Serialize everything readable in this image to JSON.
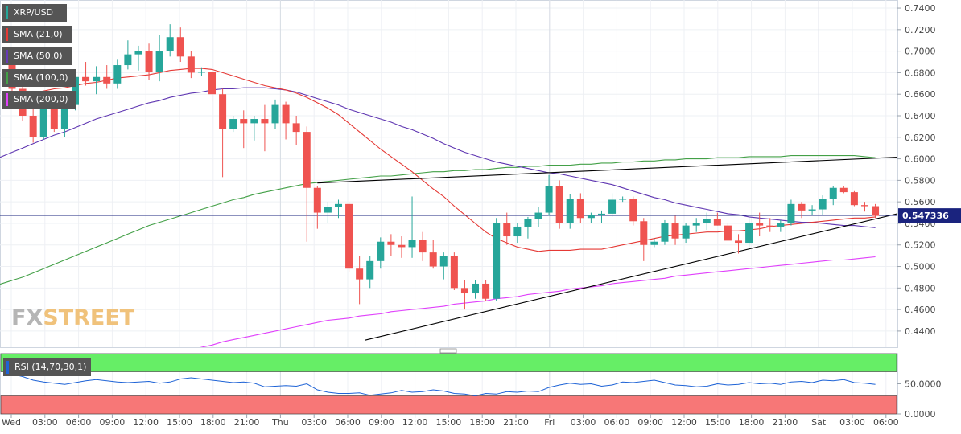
{
  "legend": [
    {
      "label": "XRP/USD",
      "color": "#26a69a"
    },
    {
      "label": "SMA (21,0)",
      "color": "#e53935"
    },
    {
      "label": "SMA (50,0)",
      "color": "#673ab7"
    },
    {
      "label": "SMA (100,0)",
      "color": "#43a047"
    },
    {
      "label": "SMA (200,0)",
      "color": "#e040fb"
    }
  ],
  "watermark": {
    "part1": "FX",
    "part2": "STREET"
  },
  "price_axis": {
    "ticks": [
      "0.7400",
      "0.7200",
      "0.7000",
      "0.6800",
      "0.6600",
      "0.6400",
      "0.6200",
      "0.6000",
      "0.5800",
      "0.5600",
      "0.5400",
      "0.5200",
      "0.5000",
      "0.4800",
      "0.4600",
      "0.4400"
    ],
    "current_price_label": "0.547336"
  },
  "rsi": {
    "label": "RSI (14,70,30,1)",
    "ticks": [
      "50.0000",
      "0.0000"
    ]
  },
  "time_axis": {
    "labels": [
      "Wed",
      "03:00",
      "06:00",
      "09:00",
      "12:00",
      "15:00",
      "18:00",
      "21:00",
      "Thu",
      "03:00",
      "06:00",
      "09:00",
      "12:00",
      "15:00",
      "18:00",
      "21:00",
      "Fri",
      "03:00",
      "06:00",
      "09:00",
      "12:00",
      "15:00",
      "18:00",
      "21:00",
      "Sat",
      "03:00",
      "06:00"
    ]
  },
  "colors": {
    "bull": "#26a69a",
    "bear": "#ef5350",
    "sma21": "#e53935",
    "sma50": "#5e35b1",
    "sma100": "#43a047",
    "sma200": "#e040fb",
    "trend": "#000000",
    "price_line": "#1a237e",
    "rsi_line": "#1e63d6",
    "rsi_overbought": "#66ee66",
    "rsi_oversold": "#f77777"
  },
  "chart_data": {
    "type": "candlestick",
    "pair": "XRP/USD",
    "timeframe_hours": 1,
    "ylim": [
      0.425,
      0.7475
    ],
    "current_price": 0.547336,
    "candles": [
      [
        0.69,
        0.7,
        0.663,
        0.665
      ],
      [
        0.665,
        0.68,
        0.635,
        0.64
      ],
      [
        0.64,
        0.65,
        0.615,
        0.62
      ],
      [
        0.62,
        0.66,
        0.618,
        0.655
      ],
      [
        0.655,
        0.663,
        0.625,
        0.628
      ],
      [
        0.628,
        0.66,
        0.62,
        0.65
      ],
      [
        0.65,
        0.682,
        0.645,
        0.676
      ],
      [
        0.676,
        0.69,
        0.668,
        0.672
      ],
      [
        0.672,
        0.686,
        0.66,
        0.676
      ],
      [
        0.676,
        0.687,
        0.665,
        0.67
      ],
      [
        0.67,
        0.692,
        0.665,
        0.687
      ],
      [
        0.687,
        0.71,
        0.683,
        0.697
      ],
      [
        0.697,
        0.705,
        0.682,
        0.7
      ],
      [
        0.7,
        0.707,
        0.673,
        0.681
      ],
      [
        0.681,
        0.715,
        0.672,
        0.7
      ],
      [
        0.7,
        0.725,
        0.695,
        0.713
      ],
      [
        0.713,
        0.722,
        0.69,
        0.695
      ],
      [
        0.695,
        0.7,
        0.675,
        0.68
      ],
      [
        0.68,
        0.685,
        0.677,
        0.681
      ],
      [
        0.681,
        0.681,
        0.653,
        0.66
      ],
      [
        0.66,
        0.665,
        0.583,
        0.628
      ],
      [
        0.628,
        0.64,
        0.625,
        0.637
      ],
      [
        0.637,
        0.645,
        0.61,
        0.633
      ],
      [
        0.633,
        0.64,
        0.617,
        0.637
      ],
      [
        0.637,
        0.65,
        0.607,
        0.633
      ],
      [
        0.633,
        0.655,
        0.628,
        0.65
      ],
      [
        0.65,
        0.653,
        0.618,
        0.633
      ],
      [
        0.633,
        0.64,
        0.613,
        0.625
      ],
      [
        0.625,
        0.63,
        0.523,
        0.573
      ],
      [
        0.573,
        0.575,
        0.535,
        0.55
      ],
      [
        0.55,
        0.56,
        0.54,
        0.555
      ],
      [
        0.555,
        0.562,
        0.545,
        0.558
      ],
      [
        0.558,
        0.56,
        0.495,
        0.498
      ],
      [
        0.498,
        0.51,
        0.465,
        0.488
      ],
      [
        0.488,
        0.51,
        0.48,
        0.505
      ],
      [
        0.505,
        0.527,
        0.498,
        0.523
      ],
      [
        0.523,
        0.53,
        0.51,
        0.52
      ],
      [
        0.52,
        0.528,
        0.508,
        0.518
      ],
      [
        0.518,
        0.565,
        0.508,
        0.525
      ],
      [
        0.525,
        0.532,
        0.505,
        0.513
      ],
      [
        0.513,
        0.525,
        0.498,
        0.5
      ],
      [
        0.5,
        0.513,
        0.488,
        0.51
      ],
      [
        0.51,
        0.513,
        0.478,
        0.48
      ],
      [
        0.48,
        0.487,
        0.46,
        0.475
      ],
      [
        0.475,
        0.487,
        0.47,
        0.484
      ],
      [
        0.484,
        0.487,
        0.468,
        0.47
      ],
      [
        0.47,
        0.545,
        0.468,
        0.54
      ],
      [
        0.54,
        0.55,
        0.52,
        0.528
      ],
      [
        0.528,
        0.54,
        0.522,
        0.537
      ],
      [
        0.537,
        0.546,
        0.526,
        0.544
      ],
      [
        0.544,
        0.555,
        0.537,
        0.55
      ],
      [
        0.55,
        0.585,
        0.547,
        0.575
      ],
      [
        0.575,
        0.58,
        0.535,
        0.54
      ],
      [
        0.54,
        0.567,
        0.535,
        0.563
      ],
      [
        0.563,
        0.568,
        0.54,
        0.545
      ],
      [
        0.545,
        0.55,
        0.54,
        0.548
      ],
      [
        0.548,
        0.552,
        0.54,
        0.549
      ],
      [
        0.549,
        0.568,
        0.546,
        0.562
      ],
      [
        0.562,
        0.565,
        0.56,
        0.563
      ],
      [
        0.563,
        0.565,
        0.538,
        0.542
      ],
      [
        0.542,
        0.545,
        0.505,
        0.52
      ],
      [
        0.52,
        0.526,
        0.518,
        0.523
      ],
      [
        0.523,
        0.543,
        0.52,
        0.54
      ],
      [
        0.54,
        0.547,
        0.52,
        0.526
      ],
      [
        0.526,
        0.54,
        0.522,
        0.538
      ],
      [
        0.538,
        0.545,
        0.532,
        0.54
      ],
      [
        0.54,
        0.55,
        0.534,
        0.544
      ],
      [
        0.544,
        0.55,
        0.538,
        0.538
      ],
      [
        0.538,
        0.54,
        0.527,
        0.524
      ],
      [
        0.524,
        0.53,
        0.512,
        0.522
      ],
      [
        0.522,
        0.545,
        0.518,
        0.54
      ],
      [
        0.54,
        0.55,
        0.528,
        0.538
      ],
      [
        0.538,
        0.545,
        0.532,
        0.537
      ],
      [
        0.537,
        0.543,
        0.532,
        0.54
      ],
      [
        0.54,
        0.562,
        0.538,
        0.558
      ],
      [
        0.558,
        0.56,
        0.545,
        0.552
      ],
      [
        0.552,
        0.557,
        0.548,
        0.553
      ],
      [
        0.553,
        0.566,
        0.548,
        0.563
      ],
      [
        0.563,
        0.575,
        0.557,
        0.573
      ],
      [
        0.573,
        0.575,
        0.568,
        0.569
      ],
      [
        0.569,
        0.57,
        0.556,
        0.557
      ],
      [
        0.557,
        0.56,
        0.551,
        0.556
      ],
      [
        0.556,
        0.558,
        0.545,
        0.547
      ]
    ],
    "sma21": [
      0.658,
      0.659,
      0.661,
      0.663,
      0.665,
      0.666,
      0.668,
      0.67,
      0.671,
      0.673,
      0.675,
      0.676,
      0.677,
      0.678,
      0.68,
      0.682,
      0.683,
      0.684,
      0.684,
      0.683,
      0.68,
      0.677,
      0.674,
      0.671,
      0.668,
      0.666,
      0.664,
      0.661,
      0.657,
      0.652,
      0.647,
      0.641,
      0.633,
      0.625,
      0.617,
      0.609,
      0.602,
      0.595,
      0.588,
      0.58,
      0.572,
      0.565,
      0.556,
      0.548,
      0.54,
      0.532,
      0.526,
      0.522,
      0.518,
      0.516,
      0.514,
      0.515,
      0.515,
      0.515,
      0.516,
      0.516,
      0.516,
      0.518,
      0.52,
      0.522,
      0.524,
      0.526,
      0.528,
      0.529,
      0.53,
      0.531,
      0.532,
      0.532,
      0.533,
      0.533,
      0.534,
      0.535,
      0.537,
      0.538,
      0.539,
      0.54,
      0.541,
      0.542,
      0.543,
      0.544,
      0.545,
      0.545,
      0.546
    ],
    "sma50": [
      0.606,
      0.61,
      0.614,
      0.618,
      0.622,
      0.625,
      0.629,
      0.633,
      0.637,
      0.64,
      0.643,
      0.646,
      0.649,
      0.652,
      0.654,
      0.657,
      0.659,
      0.661,
      0.662,
      0.664,
      0.665,
      0.665,
      0.666,
      0.666,
      0.666,
      0.665,
      0.664,
      0.662,
      0.659,
      0.656,
      0.653,
      0.65,
      0.646,
      0.643,
      0.64,
      0.637,
      0.634,
      0.63,
      0.627,
      0.623,
      0.619,
      0.614,
      0.61,
      0.606,
      0.603,
      0.6,
      0.597,
      0.595,
      0.593,
      0.591,
      0.589,
      0.587,
      0.586,
      0.584,
      0.582,
      0.58,
      0.578,
      0.576,
      0.573,
      0.57,
      0.567,
      0.564,
      0.562,
      0.559,
      0.557,
      0.555,
      0.553,
      0.551,
      0.549,
      0.548,
      0.546,
      0.545,
      0.544,
      0.543,
      0.542,
      0.541,
      0.541,
      0.54,
      0.539,
      0.538,
      0.538,
      0.537,
      0.536
    ],
    "sma100": [
      0.487,
      0.49,
      0.494,
      0.498,
      0.502,
      0.506,
      0.51,
      0.514,
      0.518,
      0.522,
      0.526,
      0.53,
      0.534,
      0.538,
      0.541,
      0.544,
      0.547,
      0.55,
      0.553,
      0.556,
      0.559,
      0.562,
      0.564,
      0.567,
      0.569,
      0.571,
      0.573,
      0.575,
      0.577,
      0.578,
      0.579,
      0.58,
      0.581,
      0.582,
      0.583,
      0.584,
      0.584,
      0.585,
      0.586,
      0.587,
      0.588,
      0.588,
      0.589,
      0.589,
      0.59,
      0.59,
      0.591,
      0.592,
      0.592,
      0.593,
      0.593,
      0.594,
      0.594,
      0.594,
      0.595,
      0.595,
      0.596,
      0.596,
      0.597,
      0.597,
      0.598,
      0.598,
      0.599,
      0.599,
      0.6,
      0.6,
      0.6,
      0.601,
      0.601,
      0.601,
      0.602,
      0.602,
      0.602,
      0.602,
      0.603,
      0.603,
      0.603,
      0.603,
      0.603,
      0.603,
      0.603,
      0.602,
      0.601
    ],
    "sma200": [
      0.372,
      0.375,
      0.378,
      0.381,
      0.384,
      0.387,
      0.39,
      0.393,
      0.396,
      0.399,
      0.402,
      0.405,
      0.408,
      0.411,
      0.414,
      0.417,
      0.42,
      0.422,
      0.425,
      0.427,
      0.43,
      0.432,
      0.434,
      0.436,
      0.438,
      0.44,
      0.442,
      0.444,
      0.446,
      0.448,
      0.45,
      0.451,
      0.452,
      0.454,
      0.455,
      0.456,
      0.458,
      0.459,
      0.46,
      0.461,
      0.462,
      0.463,
      0.465,
      0.466,
      0.467,
      0.468,
      0.47,
      0.471,
      0.472,
      0.474,
      0.475,
      0.476,
      0.477,
      0.479,
      0.48,
      0.481,
      0.482,
      0.484,
      0.485,
      0.486,
      0.487,
      0.488,
      0.489,
      0.491,
      0.492,
      0.493,
      0.494,
      0.495,
      0.496,
      0.497,
      0.498,
      0.499,
      0.5,
      0.501,
      0.502,
      0.503,
      0.504,
      0.505,
      0.506,
      0.506,
      0.507,
      0.508,
      0.509
    ],
    "trendlines": [
      {
        "from": [
          29,
          0.5775
        ],
        "to": [
          85,
          0.6015
        ]
      },
      {
        "from": [
          33.5,
          0.4315
        ],
        "to": [
          85,
          0.549
        ]
      }
    ],
    "rsi": [
      66,
      62,
      56,
      53,
      51,
      49,
      52,
      55,
      57,
      55,
      53,
      52,
      53,
      54,
      51,
      53,
      58,
      60,
      58,
      56,
      54,
      52,
      53,
      51,
      45,
      46,
      47,
      46,
      50,
      40,
      36,
      34,
      34,
      35,
      31,
      33,
      35,
      39,
      36,
      37,
      40,
      38,
      34,
      33,
      30,
      34,
      33,
      37,
      36,
      38,
      37,
      44,
      48,
      51,
      49,
      50,
      46,
      48,
      53,
      52,
      54,
      56,
      52,
      48,
      47,
      45,
      46,
      50,
      48,
      49,
      52,
      50,
      51,
      49,
      53,
      54,
      52,
      56,
      55,
      57,
      52,
      51,
      49
    ]
  }
}
